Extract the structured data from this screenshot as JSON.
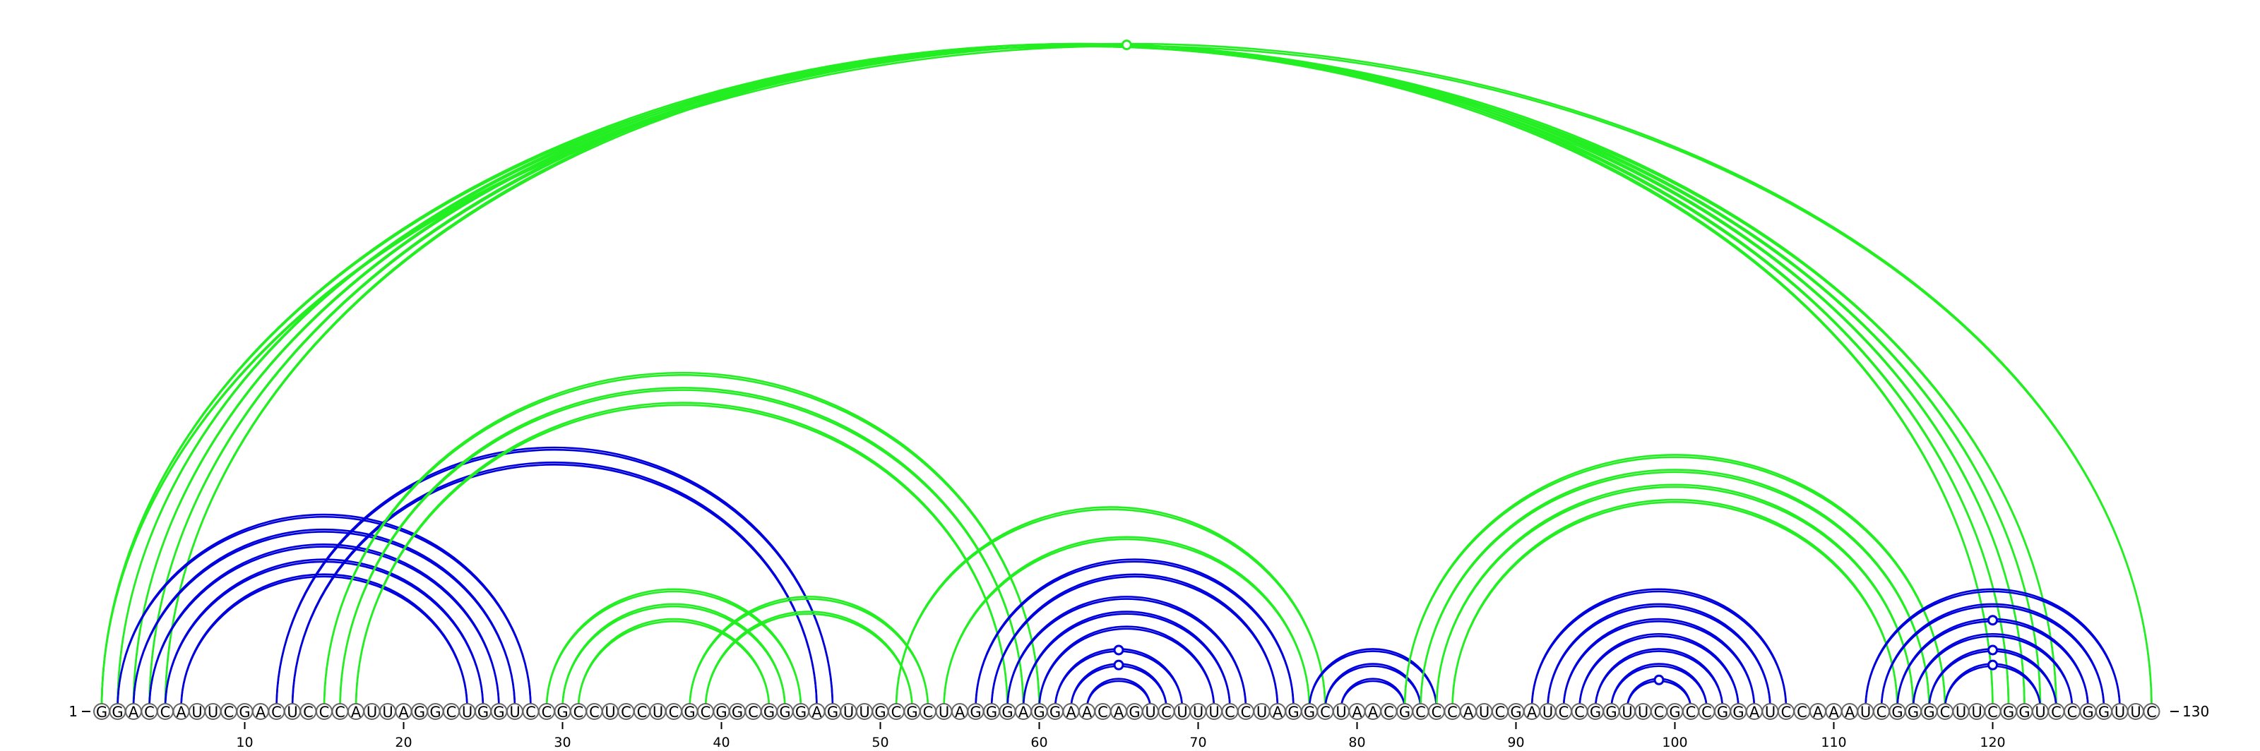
{
  "sequence": "GGACCAUUCGACUCCCAUUAGGCUGGUCCGCCUCCUCGCGGCGGGAGUUGCGCUAGGGAGGAACAGUCUUUCCUAGGCUAACGCCCAUCGAUCCGGUUCGCCGGAUCCAAAUCGGGCUUCGGUCCGGUUC",
  "start_label": "1",
  "end_label": "130",
  "ticks": [
    "10",
    "20",
    "30",
    "40",
    "50",
    "60",
    "70",
    "80",
    "90",
    "100",
    "110",
    "120"
  ],
  "colors": {
    "blue": "#0000dd",
    "green": "#22ee22"
  },
  "arcs": [
    {
      "i": 1,
      "j": 130,
      "color": "green"
    },
    {
      "i": 1,
      "j": 124,
      "color": "green"
    },
    {
      "i": 2,
      "j": 123,
      "color": "green"
    },
    {
      "i": 3,
      "j": 122,
      "color": "green"
    },
    {
      "i": 4,
      "j": 121,
      "color": "green"
    },
    {
      "i": 5,
      "j": 120,
      "color": "green"
    },
    {
      "i": 2,
      "j": 28,
      "color": "blue"
    },
    {
      "i": 3,
      "j": 27,
      "color": "blue"
    },
    {
      "i": 4,
      "j": 26,
      "color": "blue"
    },
    {
      "i": 5,
      "j": 25,
      "color": "blue"
    },
    {
      "i": 6,
      "j": 24,
      "color": "blue"
    },
    {
      "i": 12,
      "j": 47,
      "color": "blue"
    },
    {
      "i": 13,
      "j": 46,
      "color": "blue"
    },
    {
      "i": 15,
      "j": 60,
      "color": "green"
    },
    {
      "i": 16,
      "j": 59,
      "color": "green"
    },
    {
      "i": 17,
      "j": 58,
      "color": "green"
    },
    {
      "i": 29,
      "j": 45,
      "color": "green"
    },
    {
      "i": 30,
      "j": 44,
      "color": "green"
    },
    {
      "i": 31,
      "j": 43,
      "color": "green"
    },
    {
      "i": 38,
      "j": 53,
      "color": "green"
    },
    {
      "i": 39,
      "j": 52,
      "color": "green"
    },
    {
      "i": 51,
      "j": 78,
      "color": "green"
    },
    {
      "i": 54,
      "j": 77,
      "color": "green"
    },
    {
      "i": 56,
      "j": 76,
      "color": "blue"
    },
    {
      "i": 57,
      "j": 75,
      "color": "blue"
    },
    {
      "i": 58,
      "j": 73,
      "color": "blue"
    },
    {
      "i": 59,
      "j": 72,
      "color": "blue"
    },
    {
      "i": 60,
      "j": 71,
      "color": "blue"
    },
    {
      "i": 61,
      "j": 69,
      "color": "blue"
    },
    {
      "i": 62,
      "j": 68,
      "color": "blue"
    },
    {
      "i": 63,
      "j": 67,
      "color": "blue"
    },
    {
      "i": 77,
      "j": 85,
      "color": "blue"
    },
    {
      "i": 78,
      "j": 84,
      "color": "blue"
    },
    {
      "i": 79,
      "j": 83,
      "color": "blue"
    },
    {
      "i": 83,
      "j": 117,
      "color": "green"
    },
    {
      "i": 84,
      "j": 116,
      "color": "green"
    },
    {
      "i": 85,
      "j": 115,
      "color": "green"
    },
    {
      "i": 86,
      "j": 114,
      "color": "green"
    },
    {
      "i": 91,
      "j": 107,
      "color": "blue"
    },
    {
      "i": 92,
      "j": 106,
      "color": "blue"
    },
    {
      "i": 93,
      "j": 105,
      "color": "blue"
    },
    {
      "i": 94,
      "j": 104,
      "color": "blue"
    },
    {
      "i": 95,
      "j": 103,
      "color": "blue"
    },
    {
      "i": 96,
      "j": 102,
      "color": "blue"
    },
    {
      "i": 97,
      "j": 101,
      "color": "blue"
    },
    {
      "i": 112,
      "j": 128,
      "color": "blue"
    },
    {
      "i": 113,
      "j": 127,
      "color": "blue"
    },
    {
      "i": 114,
      "j": 126,
      "color": "blue"
    },
    {
      "i": 115,
      "j": 125,
      "color": "blue"
    },
    {
      "i": 116,
      "j": 124,
      "color": "blue"
    },
    {
      "i": 117,
      "j": 123,
      "color": "blue"
    }
  ]
}
